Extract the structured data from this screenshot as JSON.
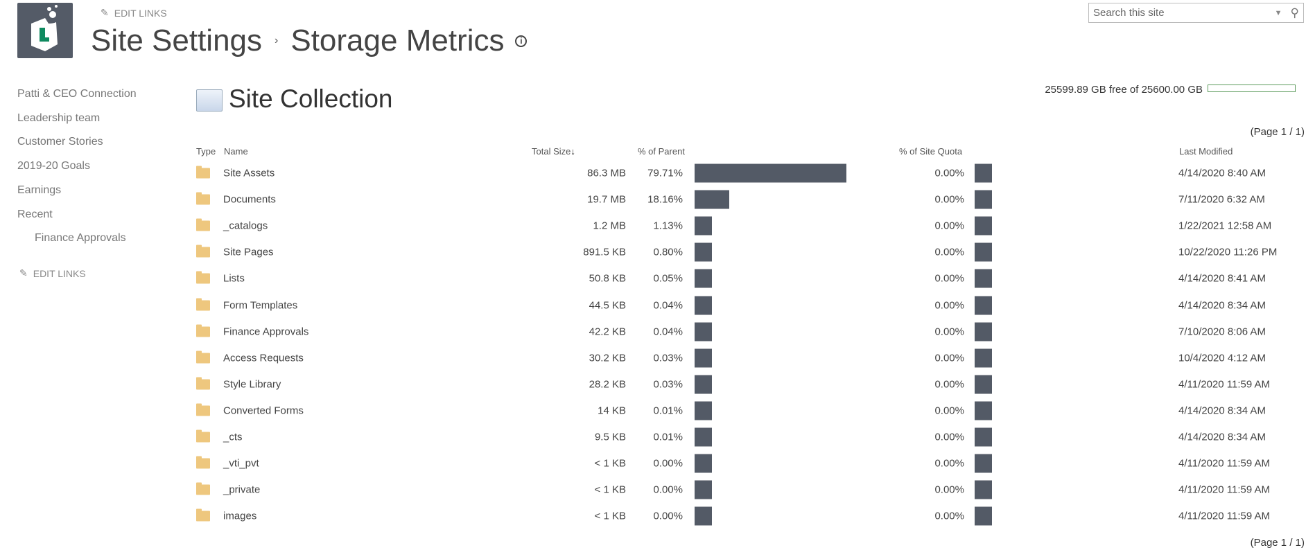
{
  "header": {
    "edit_links": "EDIT LINKS",
    "breadcrumb_parent": "Site Settings",
    "breadcrumb_sep": "›",
    "page_title": "Storage Metrics",
    "info": "i"
  },
  "search": {
    "placeholder": "Search this site"
  },
  "nav": {
    "items": [
      "Patti & CEO Connection",
      "Leadership team",
      "Customer Stories",
      "2019-20 Goals",
      "Earnings",
      "Recent"
    ],
    "sub_item": "Finance Approvals",
    "edit_links": "EDIT LINKS"
  },
  "main": {
    "title": "Site Collection",
    "quota_text": "25599.89 GB free of 25600.00 GB",
    "quota_used_percent": 0.0004,
    "pager_top": "(Page 1 / 1)",
    "pager_bottom": "(Page 1 / 1)",
    "columns": {
      "type": "Type",
      "name": "Name",
      "total_size": "Total Size",
      "sort_arrow": "↓",
      "pct_parent": "% of Parent",
      "pct_quota": "% of Site Quota",
      "last_modified": "Last Modified"
    },
    "rows": [
      {
        "name": "Site Assets",
        "size": "86.3 MB",
        "pct_parent": "79.71%",
        "parent_value": 79.71,
        "pct_quota": "0.00%",
        "modified": "4/14/2020 8:40 AM"
      },
      {
        "name": "Documents",
        "size": "19.7 MB",
        "pct_parent": "18.16%",
        "parent_value": 18.16,
        "pct_quota": "0.00%",
        "modified": "7/11/2020 6:32 AM"
      },
      {
        "name": "_catalogs",
        "size": "1.2 MB",
        "pct_parent": "1.13%",
        "parent_value": 1.13,
        "pct_quota": "0.00%",
        "modified": "1/22/2021 12:58 AM"
      },
      {
        "name": "Site Pages",
        "size": "891.5 KB",
        "pct_parent": "0.80%",
        "parent_value": 0.8,
        "pct_quota": "0.00%",
        "modified": "10/22/2020 11:26 PM"
      },
      {
        "name": "Lists",
        "size": "50.8 KB",
        "pct_parent": "0.05%",
        "parent_value": 0.05,
        "pct_quota": "0.00%",
        "modified": "4/14/2020 8:41 AM"
      },
      {
        "name": "Form Templates",
        "size": "44.5 KB",
        "pct_parent": "0.04%",
        "parent_value": 0.04,
        "pct_quota": "0.00%",
        "modified": "4/14/2020 8:34 AM"
      },
      {
        "name": "Finance Approvals",
        "size": "42.2 KB",
        "pct_parent": "0.04%",
        "parent_value": 0.04,
        "pct_quota": "0.00%",
        "modified": "7/10/2020 8:06 AM"
      },
      {
        "name": "Access Requests",
        "size": "30.2 KB",
        "pct_parent": "0.03%",
        "parent_value": 0.03,
        "pct_quota": "0.00%",
        "modified": "10/4/2020 4:12 AM"
      },
      {
        "name": "Style Library",
        "size": "28.2 KB",
        "pct_parent": "0.03%",
        "parent_value": 0.03,
        "pct_quota": "0.00%",
        "modified": "4/11/2020 11:59 AM"
      },
      {
        "name": "Converted Forms",
        "size": "14 KB",
        "pct_parent": "0.01%",
        "parent_value": 0.01,
        "pct_quota": "0.00%",
        "modified": "4/14/2020 8:34 AM"
      },
      {
        "name": "_cts",
        "size": "9.5 KB",
        "pct_parent": "0.01%",
        "parent_value": 0.01,
        "pct_quota": "0.00%",
        "modified": "4/14/2020 8:34 AM"
      },
      {
        "name": "_vti_pvt",
        "size": "< 1 KB",
        "pct_parent": "0.00%",
        "parent_value": 0,
        "pct_quota": "0.00%",
        "modified": "4/11/2020 11:59 AM"
      },
      {
        "name": "_private",
        "size": "< 1 KB",
        "pct_parent": "0.00%",
        "parent_value": 0,
        "pct_quota": "0.00%",
        "modified": "4/11/2020 11:59 AM"
      },
      {
        "name": "images",
        "size": "< 1 KB",
        "pct_parent": "0.00%",
        "parent_value": 0,
        "pct_quota": "0.00%",
        "modified": "4/11/2020 11:59 AM"
      }
    ]
  }
}
